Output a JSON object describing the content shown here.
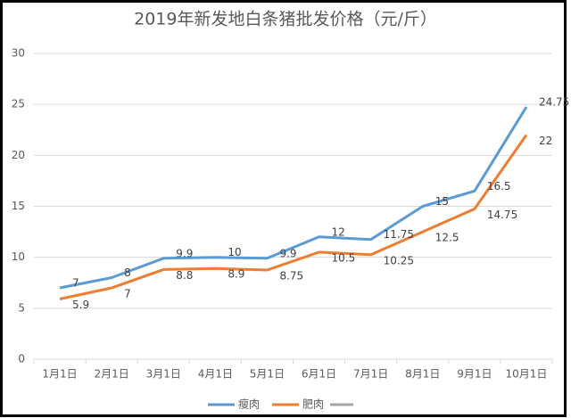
{
  "chart_data": {
    "type": "line",
    "title": "2019年新发地白条猪批发价格（元/斤）",
    "categories": [
      "1月1日",
      "2月1日",
      "3月1日",
      "4月1日",
      "5月1日",
      "6月1日",
      "7月1日",
      "8月1日",
      "9月1日",
      "10月1日"
    ],
    "series": [
      {
        "name": "瘦肉",
        "color": "#5b9bd5",
        "values": [
          7,
          8,
          9.9,
          10,
          9.9,
          12,
          11.75,
          15,
          16.5,
          24.75
        ]
      },
      {
        "name": "肥肉",
        "color": "#ed7d31",
        "values": [
          5.9,
          7,
          8.8,
          8.9,
          8.75,
          10.5,
          10.25,
          12.5,
          14.75,
          22
        ]
      }
    ],
    "ylim": [
      0,
      30
    ],
    "yticks": [
      0,
      5,
      10,
      15,
      20,
      25,
      30
    ],
    "grid": true
  }
}
